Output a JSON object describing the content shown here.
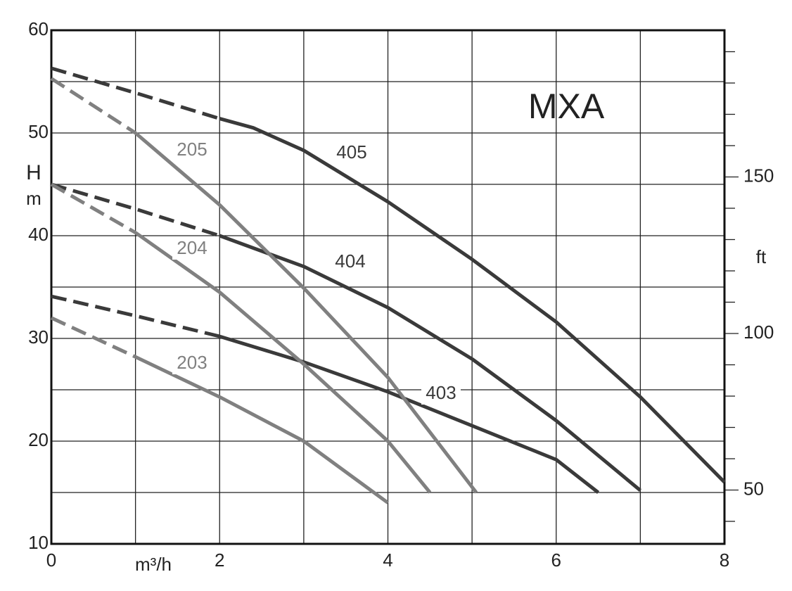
{
  "chart_data": {
    "type": "line",
    "title": "MXA",
    "y_label": "H",
    "y_unit": "m",
    "x_label": "m³/h",
    "y2_label": "ft",
    "xlim": [
      0,
      8
    ],
    "xticks": [
      0,
      2,
      4,
      6,
      8
    ],
    "xgrid": [
      1,
      3,
      5,
      7
    ],
    "ylim": [
      10,
      60
    ],
    "yticks": [
      10,
      20,
      30,
      40,
      50,
      60
    ],
    "ygrid": [
      15,
      25,
      35,
      45,
      55
    ],
    "y2lim": [
      32.81,
      196.85
    ],
    "y2ticks": [
      50,
      100,
      150
    ],
    "y2minor": [
      40,
      60,
      70,
      80,
      90,
      110,
      120,
      130,
      140,
      160,
      170,
      180,
      190
    ],
    "grid": true,
    "series": [
      {
        "name": "405",
        "color": "#3a3a3a",
        "dashed_to": 2,
        "x": [
          0,
          1,
          2,
          2.4,
          3,
          4,
          5,
          6,
          7,
          8
        ],
        "values": [
          56.3,
          53.9,
          51.4,
          50.5,
          48.3,
          43.3,
          37.7,
          31.6,
          24.3,
          16.0
        ]
      },
      {
        "name": "404",
        "color": "#3a3a3a",
        "dashed_to": 2,
        "x": [
          0,
          1,
          2,
          3,
          4,
          5,
          6,
          7
        ],
        "values": [
          45.0,
          42.6,
          40.0,
          37.0,
          33.0,
          28.0,
          22.0,
          15.2
        ]
      },
      {
        "name": "403",
        "color": "#3a3a3a",
        "dashed_to": 2,
        "x": [
          0,
          1,
          2,
          3,
          4,
          5,
          6,
          6.5
        ],
        "values": [
          34.1,
          32.2,
          30.2,
          27.7,
          24.8,
          21.5,
          18.2,
          15.0
        ]
      },
      {
        "name": "205",
        "color": "#808080",
        "dashed_to": 1,
        "x": [
          0,
          1,
          2,
          3,
          4,
          5.05
        ],
        "values": [
          55.3,
          50.0,
          43.0,
          34.9,
          26.2,
          15.0
        ]
      },
      {
        "name": "204",
        "color": "#808080",
        "dashed_to": 1,
        "x": [
          0,
          1,
          2,
          3,
          4,
          4.5
        ],
        "values": [
          45.0,
          40.3,
          34.5,
          27.5,
          20.0,
          15.0
        ]
      },
      {
        "name": "203",
        "color": "#808080",
        "dashed_to": 1,
        "x": [
          0,
          1,
          2,
          3,
          4
        ],
        "values": [
          32.0,
          28.2,
          24.3,
          20.0,
          14.0
        ]
      }
    ]
  }
}
